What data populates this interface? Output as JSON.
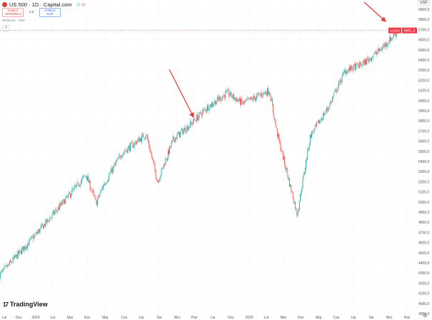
{
  "header": {
    "symbol_title": "US 500 · 1D · Capital.com",
    "sell_price": "6 691,0",
    "sell_label": "SPRZEDAJ",
    "spread": "0,5",
    "buy_price": "6 691,5",
    "buy_label": "KUP",
    "volume_label": "Wolumen · 1M3",
    "collapse_icon": "chevron-up-icon",
    "currency": "USD"
  },
  "branding": {
    "name": "TradingView"
  },
  "colors": {
    "up": "#26a69a",
    "down": "#ef5350",
    "arrow": "#e53935",
    "grid": "#e6e9ef",
    "price_tag": "#f23645"
  },
  "chart_data": {
    "type": "candlestick",
    "title": "",
    "price_label": {
      "symbol": "US500",
      "value": "6691,3"
    },
    "y_ticks": [
      "6900,0",
      "6800,0",
      "6700,0",
      "6600,0",
      "6500,0",
      "6400,0",
      "6300,0",
      "6200,0",
      "6100,0",
      "6000,0",
      "5900,0",
      "5800,0",
      "5700,0",
      "5600,0",
      "5500,0",
      "5400,0",
      "5300,0",
      "5200,0",
      "5100,0",
      "5000,0",
      "4900,0",
      "4800,0",
      "4700,0",
      "4600,0",
      "4500,0",
      "4400,0",
      "4300,0",
      "4200,0",
      "4100,0",
      "4000,0",
      "3900,0"
    ],
    "ylim": [
      3900,
      6900
    ],
    "x_ticks": [
      "Lis",
      "Gru",
      "2024",
      "Lut",
      "Mar",
      "Kwi",
      "Maj",
      "Cze",
      "Lip",
      "Sie",
      "Wrz",
      "Paź",
      "Lis",
      "Gru",
      "2025",
      "Lut",
      "Mar",
      "Kwi",
      "Maj",
      "Cze",
      "Lip",
      "Sie",
      "Wrz",
      "Paź"
    ],
    "approx_path": [
      {
        "date": "2023-11-01",
        "close": 4280
      },
      {
        "date": "2024-01-02",
        "close": 4670
      },
      {
        "date": "2024-03-01",
        "close": 5055
      },
      {
        "date": "2024-04-01",
        "close": 5270
      },
      {
        "date": "2024-04-19",
        "close": 4985
      },
      {
        "date": "2024-05-01",
        "close": 5160
      },
      {
        "date": "2024-06-03",
        "close": 5480
      },
      {
        "date": "2024-07-16",
        "close": 5670
      },
      {
        "date": "2024-08-05",
        "close": 5200
      },
      {
        "date": "2024-09-02",
        "close": 5620
      },
      {
        "date": "2024-10-01",
        "close": 5760
      },
      {
        "date": "2024-11-01",
        "close": 5935
      },
      {
        "date": "2024-12-06",
        "close": 6075
      },
      {
        "date": "2025-01-02",
        "close": 5970
      },
      {
        "date": "2025-02-18",
        "close": 6100
      },
      {
        "date": "2025-03-03",
        "close": 5690
      },
      {
        "date": "2025-04-08",
        "close": 4880
      },
      {
        "date": "2025-05-01",
        "close": 5650
      },
      {
        "date": "2025-06-02",
        "close": 5935
      },
      {
        "date": "2025-07-01",
        "close": 6290
      },
      {
        "date": "2025-08-01",
        "close": 6360
      },
      {
        "date": "2025-09-01",
        "close": 6500
      },
      {
        "date": "2025-10-03",
        "close": 6691
      }
    ],
    "annotations": [
      "red arrow pointing at Oct 2024 high",
      "red arrow pointing at latest price"
    ],
    "grid": true
  }
}
